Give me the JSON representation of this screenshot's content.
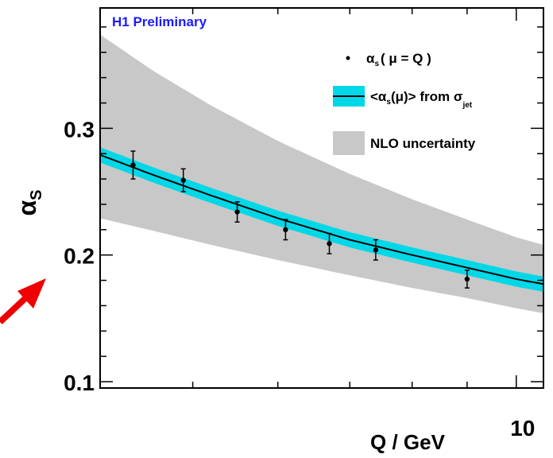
{
  "chart_data": {
    "type": "scatter",
    "title": "H1 Preliminary",
    "xlabel": "Q / GeV",
    "ylabel": "α",
    "ylabel_sub": "S",
    "xscale": "log",
    "xlim": [
      4.1,
      10.6
    ],
    "ylim": [
      0.095,
      0.395
    ],
    "x_tick_labels": [
      {
        "value": 10,
        "label": "10"
      }
    ],
    "y_tick_labels": [
      {
        "value": 0.1,
        "label": "0.1"
      },
      {
        "value": 0.2,
        "label": "0.2"
      },
      {
        "value": 0.3,
        "label": "0.3"
      }
    ],
    "series": [
      {
        "name": "αs( μ = Q )",
        "kind": "points-with-errorbars",
        "x": [
          4.4,
          4.9,
          5.5,
          6.1,
          6.7,
          7.4,
          9.0
        ],
        "y": [
          0.271,
          0.259,
          0.234,
          0.22,
          0.209,
          0.204,
          0.181
        ],
        "err": [
          0.011,
          0.009,
          0.008,
          0.008,
          0.008,
          0.008,
          0.007
        ]
      },
      {
        "name": "<αs(μ)> from σjet",
        "kind": "curve-with-band",
        "color": "#00d8e8",
        "x": [
          4.1,
          4.6,
          5.2,
          6.0,
          7.0,
          8.0,
          9.0,
          10.0,
          10.6
        ],
        "y": [
          0.279,
          0.263,
          0.247,
          0.229,
          0.212,
          0.2,
          0.19,
          0.181,
          0.177
        ],
        "band_halfwidth": 0.006
      },
      {
        "name": "NLO uncertainty",
        "kind": "band",
        "color": "#c8c8c8",
        "x": [
          4.1,
          4.6,
          5.2,
          6.0,
          7.0,
          8.0,
          9.0,
          10.0,
          10.6
        ],
        "upper": [
          0.374,
          0.345,
          0.318,
          0.29,
          0.264,
          0.244,
          0.228,
          0.214,
          0.208
        ],
        "lower": [
          0.229,
          0.219,
          0.208,
          0.196,
          0.184,
          0.174,
          0.166,
          0.158,
          0.154
        ]
      }
    ],
    "legend": {
      "placement": "top-right",
      "entries": [
        {
          "main": "α",
          "sub": "s",
          "rest": "( μ = Q )"
        },
        {
          "pre": "<α",
          "sub": "s",
          "mid": "(μ)> from σ",
          "sub2": "jet"
        },
        {
          "main": "NLO uncertainty"
        }
      ]
    },
    "title_color": "#1a1aff",
    "annotation": {
      "kind": "red-arrow",
      "color": "#ee0000"
    }
  }
}
